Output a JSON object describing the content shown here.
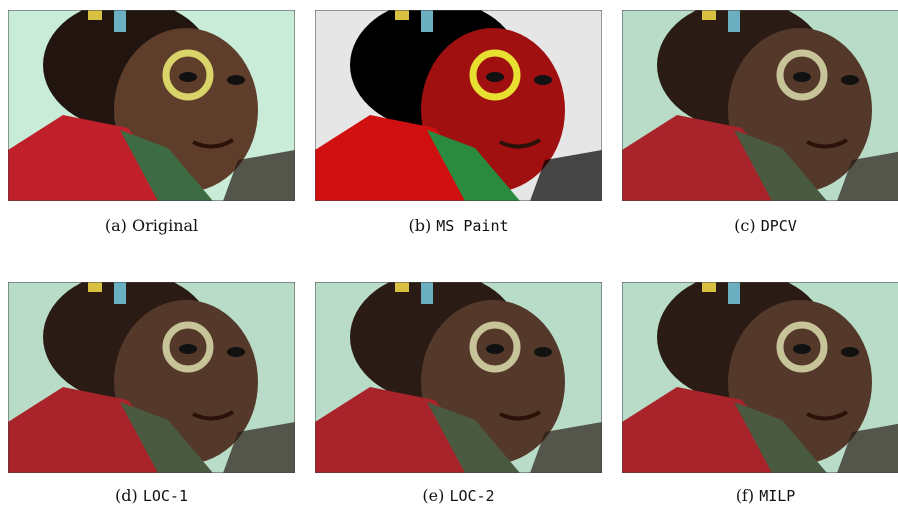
{
  "figures": [
    {
      "label": "(a)",
      "caption": "Original"
    },
    {
      "label": "(b)",
      "caption": "MS Paint"
    },
    {
      "label": "(c)",
      "caption": "DPCV"
    },
    {
      "label": "(d)",
      "caption": "LOC-1"
    },
    {
      "label": "(e)",
      "caption": "LOC-2"
    },
    {
      "label": "(f)",
      "caption": "MILP"
    }
  ]
}
